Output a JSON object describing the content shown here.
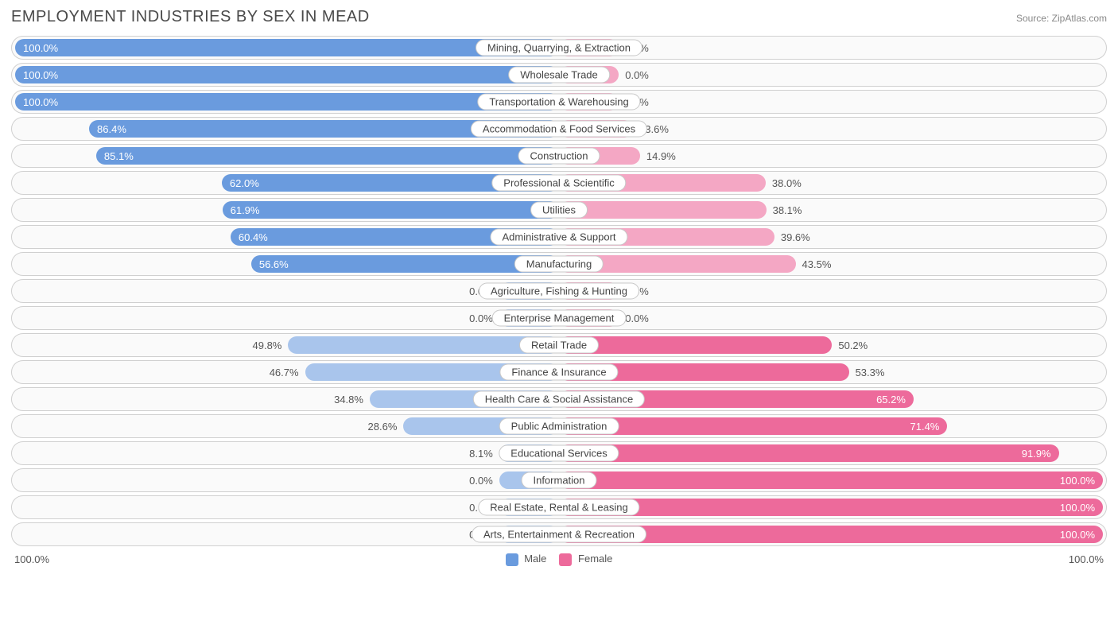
{
  "title": "EMPLOYMENT INDUSTRIES BY SEX IN MEAD",
  "source": "Source: ZipAtlas.com",
  "chart": {
    "type": "diverging-bar",
    "male_color_full": "#6a9bde",
    "male_color_partial": "#a9c5ec",
    "female_color_full": "#ed6a9b",
    "female_color_partial": "#f4a7c4",
    "row_bg": "#fafafa",
    "row_border": "#d0d0d0",
    "label_bg": "#ffffff",
    "label_border": "#c8c8c8",
    "text_color": "#555555",
    "inner_text_color": "#ffffff",
    "min_bar_pct": 11,
    "axis_left": "100.0%",
    "axis_right": "100.0%",
    "legend": {
      "male": "Male",
      "female": "Female"
    },
    "rows": [
      {
        "label": "Mining, Quarrying, & Extraction",
        "male": 100.0,
        "female": 0.0
      },
      {
        "label": "Wholesale Trade",
        "male": 100.0,
        "female": 0.0
      },
      {
        "label": "Transportation & Warehousing",
        "male": 100.0,
        "female": 0.0
      },
      {
        "label": "Accommodation & Food Services",
        "male": 86.4,
        "female": 13.6
      },
      {
        "label": "Construction",
        "male": 85.1,
        "female": 14.9
      },
      {
        "label": "Professional & Scientific",
        "male": 62.0,
        "female": 38.0
      },
      {
        "label": "Utilities",
        "male": 61.9,
        "female": 38.1
      },
      {
        "label": "Administrative & Support",
        "male": 60.4,
        "female": 39.6
      },
      {
        "label": "Manufacturing",
        "male": 56.6,
        "female": 43.5
      },
      {
        "label": "Agriculture, Fishing & Hunting",
        "male": 0.0,
        "female": 0.0
      },
      {
        "label": "Enterprise Management",
        "male": 0.0,
        "female": 0.0
      },
      {
        "label": "Retail Trade",
        "male": 49.8,
        "female": 50.2
      },
      {
        "label": "Finance & Insurance",
        "male": 46.7,
        "female": 53.3
      },
      {
        "label": "Health Care & Social Assistance",
        "male": 34.8,
        "female": 65.2
      },
      {
        "label": "Public Administration",
        "male": 28.6,
        "female": 71.4
      },
      {
        "label": "Educational Services",
        "male": 8.1,
        "female": 91.9
      },
      {
        "label": "Information",
        "male": 0.0,
        "female": 100.0
      },
      {
        "label": "Real Estate, Rental & Leasing",
        "male": 0.0,
        "female": 100.0
      },
      {
        "label": "Arts, Entertainment & Recreation",
        "male": 0.0,
        "female": 100.0
      }
    ]
  }
}
